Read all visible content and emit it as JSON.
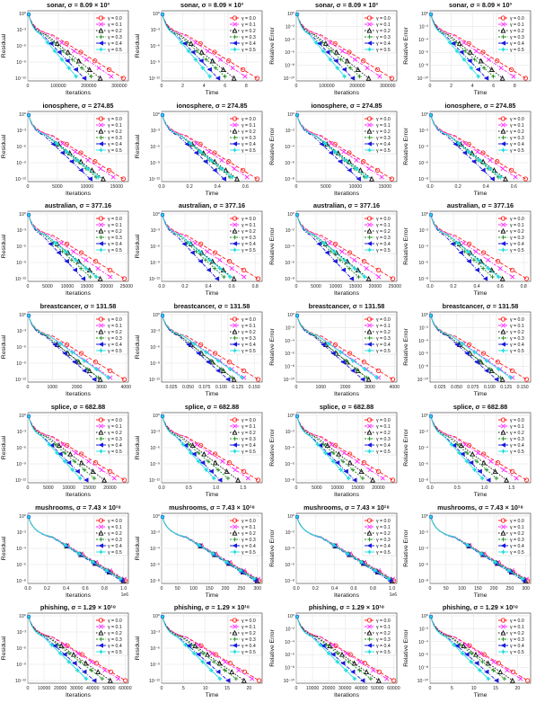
{
  "legend_labels": [
    "γ = 0.0",
    "γ = 0.1",
    "γ = 0.2",
    "γ = 0.3",
    "γ = 0.4",
    "γ = 0.5"
  ],
  "series_colors": [
    "#ff2020",
    "#ff22ff",
    "#111111",
    "#208a20",
    "#1a1add",
    "#22dddd"
  ],
  "series_markers": [
    "circle",
    "x",
    "triangle",
    "plus",
    "triangle-left",
    "star"
  ],
  "rows": [
    {
      "title": "sonar, σ = 8.09 × 10³",
      "xlim_iter": [
        0,
        330000
      ],
      "xticks_iter": [
        "0",
        "100000",
        "200000",
        "300000"
      ],
      "xlim_time": [
        0,
        9.5
      ],
      "xticks_time": [
        "0",
        "2",
        "4",
        "6",
        "8"
      ],
      "ends": [
        0.95,
        0.83,
        0.72,
        0.63,
        0.56,
        0.48
      ],
      "iter_x_exp": "",
      "res_ticks": [
        "10⁰",
        "10⁻³",
        "10⁻⁶",
        "10⁻⁹",
        "10⁻¹²"
      ],
      "rel_ticks": [
        "10⁰",
        "10⁻²",
        "10⁻⁴",
        "10⁻⁶",
        "10⁻⁸",
        "10⁻¹⁰"
      ]
    },
    {
      "title": "ionosphere, σ = 274.85",
      "xlim_iter": [
        0,
        17000
      ],
      "xticks_iter": [
        "0",
        "5000",
        "10000",
        "15000"
      ],
      "xlim_time": [
        0,
        0.72
      ],
      "xticks_time": [
        "0.0",
        "0.2",
        "0.4",
        "0.6"
      ],
      "ends": [
        0.95,
        0.85,
        0.75,
        0.68,
        0.62,
        0.7
      ],
      "iter_x_exp": "",
      "res_ticks": [
        "10⁰",
        "10⁻³",
        "10⁻⁶",
        "10⁻⁹",
        "10⁻¹²"
      ],
      "rel_ticks": [
        "10⁰",
        "10⁻²",
        "10⁻⁴",
        "10⁻⁶",
        "10⁻⁸"
      ]
    },
    {
      "title": "australian, σ = 377.16",
      "xlim_iter": [
        0,
        25500
      ],
      "xticks_iter": [
        "0",
        "5000",
        "10000",
        "15000",
        "20000",
        "25000"
      ],
      "xlim_time": [
        0,
        0.86
      ],
      "xticks_time": [
        "0.0",
        "0.2",
        "0.4",
        "0.6",
        "0.8"
      ],
      "ends": [
        0.96,
        0.82,
        0.72,
        0.62,
        0.55,
        0.68
      ],
      "iter_x_exp": "",
      "res_ticks": [
        "10⁰",
        "10⁻³",
        "10⁻⁶",
        "10⁻⁹",
        "10⁻¹²"
      ],
      "rel_ticks": [
        "10⁰",
        "10⁻²",
        "10⁻⁴",
        "10⁻⁶",
        "10⁻⁸"
      ]
    },
    {
      "title": "breastcancer, σ = 131.58",
      "xlim_iter": [
        0,
        4100
      ],
      "xticks_iter": [
        "0",
        "1000",
        "2000",
        "3000",
        "4000"
      ],
      "xlim_time": [
        0.01,
        0.162
      ],
      "xticks_time": [
        "0.025",
        "0.050",
        "0.075",
        "0.100",
        "0.125",
        "0.150"
      ],
      "ends": [
        0.96,
        0.82,
        0.72,
        0.7,
        0.66,
        0.8
      ],
      "iter_x_exp": "",
      "res_ticks": [
        "10⁰",
        "10⁻³",
        "10⁻⁶",
        "10⁻⁹",
        "10⁻¹²"
      ],
      "rel_ticks": [
        "10⁰",
        "10⁻²",
        "10⁻⁴",
        "10⁻⁶",
        "10⁻⁸",
        "10⁻¹⁰"
      ]
    },
    {
      "title": "splice, σ = 682.88",
      "xlim_iter": [
        0,
        24500
      ],
      "xticks_iter": [
        "0",
        "5000",
        "10000",
        "15000",
        "20000"
      ],
      "xlim_time": [
        0,
        1.85
      ],
      "xticks_time": [
        "0.0",
        "0.5",
        "1.0",
        "1.5"
      ],
      "ends": [
        0.96,
        0.86,
        0.76,
        0.66,
        0.58,
        0.52
      ],
      "iter_x_exp": "",
      "res_ticks": [
        "10⁰",
        "10⁻³",
        "10⁻⁶",
        "10⁻⁹",
        "10⁻¹²"
      ],
      "rel_ticks": [
        "10⁰",
        "10⁻²",
        "10⁻⁴",
        "10⁻⁶",
        "10⁻⁸"
      ]
    },
    {
      "title": "mushrooms, σ = 7.43 × 10¹⁸",
      "xlim_iter": [
        0,
        1.05
      ],
      "xticks_iter": [
        "0.0",
        "0.2",
        "0.4",
        "0.6",
        "0.8",
        "1.0"
      ],
      "xlim_time": [
        0,
        315
      ],
      "xticks_time": [
        "0",
        "50",
        "100",
        "150",
        "200",
        "250",
        "300"
      ],
      "ends": [
        0.97,
        0.96,
        0.95,
        0.94,
        0.93,
        0.92
      ],
      "iter_x_exp": "1e6",
      "res_ticks": [
        "10⁰",
        "10⁻²",
        "10⁻⁴",
        "10⁻⁶",
        "10⁻⁸"
      ],
      "rel_ticks": [
        "10⁰",
        "10⁻²",
        "10⁻⁴",
        "10⁻⁶",
        "10⁻⁸"
      ]
    },
    {
      "title": "phishing, σ = 1.29 × 10¹⁸",
      "xlim_iter": [
        0,
        62000
      ],
      "xticks_iter": [
        "0",
        "10000",
        "20000",
        "30000",
        "40000",
        "50000",
        "60000"
      ],
      "xlim_time": [
        0,
        23
      ],
      "xticks_time": [
        "0",
        "5",
        "10",
        "15",
        "20"
      ],
      "ends": [
        0.97,
        0.9,
        0.82,
        0.74,
        0.66,
        0.58
      ],
      "iter_x_exp": "",
      "res_ticks": [
        "10⁰",
        "10⁻³",
        "10⁻⁶",
        "10⁻⁹",
        "10⁻¹²"
      ],
      "rel_ticks": [
        "10⁰",
        "10⁻²",
        "10⁻⁴",
        "10⁻⁶",
        "10⁻⁸",
        "10⁻¹⁰"
      ]
    }
  ],
  "columns": [
    {
      "xlabel": "Iterations",
      "ylabel": "Residual",
      "x_axis": "iter",
      "y_ticks": "res"
    },
    {
      "xlabel": "Time",
      "ylabel": "Residual",
      "x_axis": "time",
      "y_ticks": "res"
    },
    {
      "xlabel": "Iterations",
      "ylabel": "Relative Error",
      "x_axis": "iter",
      "y_ticks": "rel"
    },
    {
      "xlabel": "Time",
      "ylabel": "Relative Error",
      "x_axis": "time",
      "y_ticks": "rel"
    }
  ],
  "chart_data": {
    "type": "line",
    "description_note": "",
    "y_scale": "log",
    "series_names": [
      "γ = 0.0",
      "γ = 0.1",
      "γ = 0.2",
      "γ = 0.3",
      "γ = 0.4",
      "γ = 0.5"
    ],
    "panel_titles": [
      "sonar, σ = 8.09 × 10³",
      "ionosphere, σ = 274.85",
      "australian, σ = 377.16",
      "breastcancer, σ = 131.58",
      "splice, σ = 682.88",
      "mushrooms, σ = 7.43 × 10¹⁸",
      "phishing, σ = 1.29 × 10¹⁸"
    ],
    "x_labels": [
      "Iterations",
      "Time",
      "Iterations",
      "Time"
    ],
    "y_labels": [
      "Residual",
      "Residual",
      "Relative Error",
      "Relative Error"
    ],
    "legend_placement": "top-right",
    "grid": true
  }
}
